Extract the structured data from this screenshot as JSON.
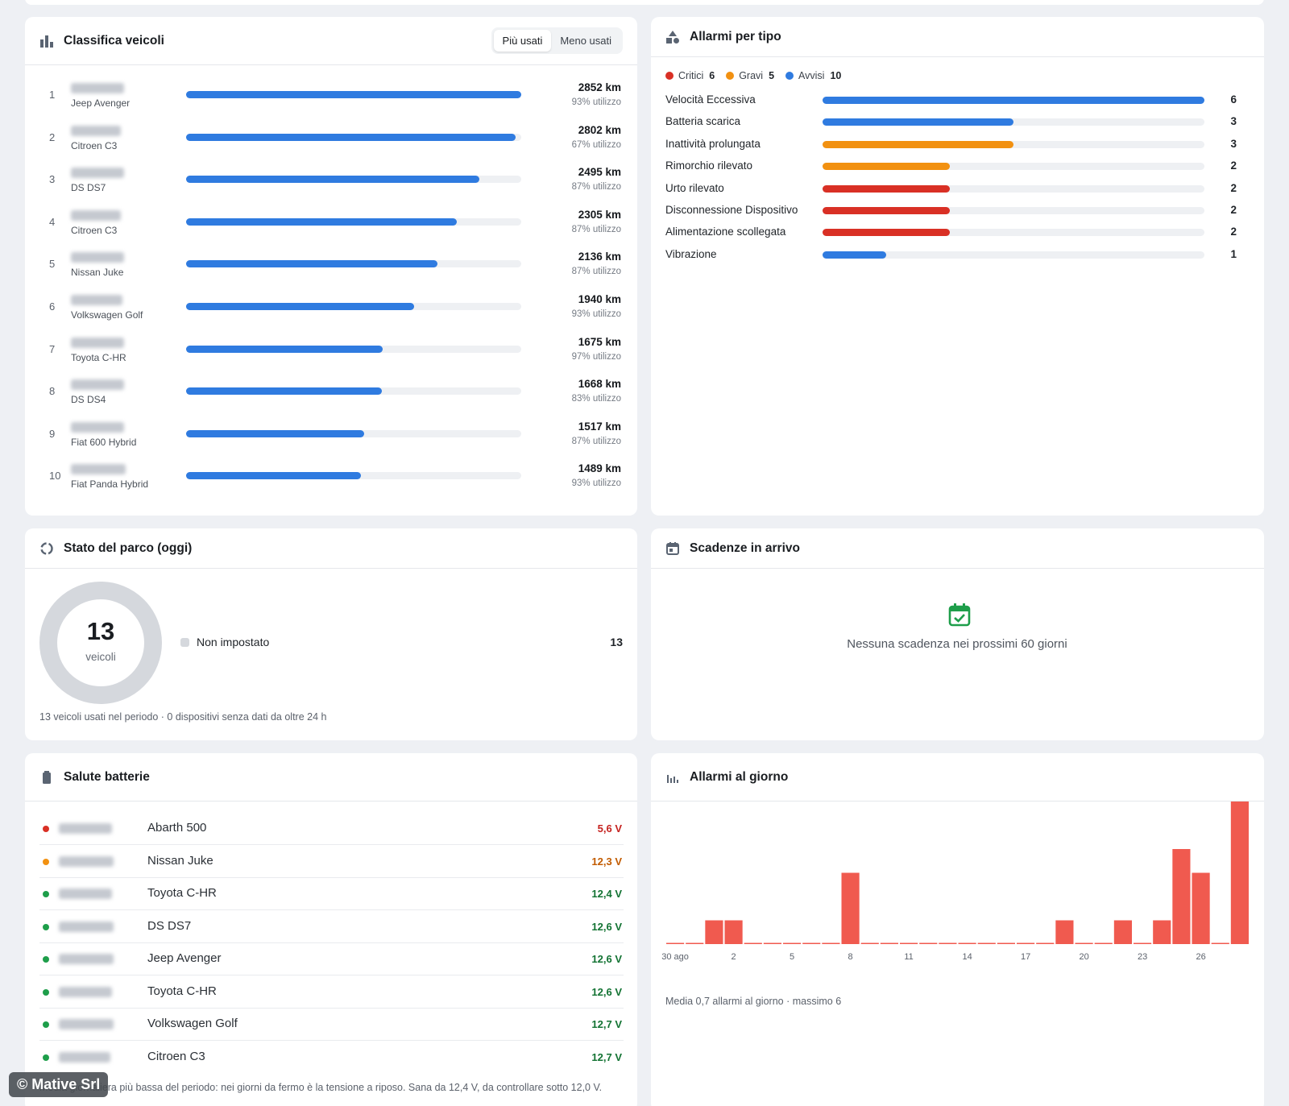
{
  "ranking": {
    "title": "Classifica veicoli",
    "tabs": [
      "Più usati",
      "Meno usati"
    ],
    "active_tab": "Più usati",
    "rows": [
      {
        "rank": "1",
        "model": "Jeep Avenger",
        "km": "2852 km",
        "km_value": 2852,
        "usage": "93% utilizzo"
      },
      {
        "rank": "2",
        "model": "Citroen C3",
        "km": "2802 km",
        "km_value": 2802,
        "usage": "67% utilizzo"
      },
      {
        "rank": "3",
        "model": "DS DS7",
        "km": "2495 km",
        "km_value": 2495,
        "usage": "87% utilizzo"
      },
      {
        "rank": "4",
        "model": "Citroen C3",
        "km": "2305 km",
        "km_value": 2305,
        "usage": "87% utilizzo"
      },
      {
        "rank": "5",
        "model": "Nissan Juke",
        "km": "2136 km",
        "km_value": 2136,
        "usage": "87% utilizzo"
      },
      {
        "rank": "6",
        "model": "Volkswagen Golf",
        "km": "1940 km",
        "km_value": 1940,
        "usage": "93% utilizzo"
      },
      {
        "rank": "7",
        "model": "Toyota C-HR",
        "km": "1675 km",
        "km_value": 1675,
        "usage": "97% utilizzo"
      },
      {
        "rank": "8",
        "model": "DS DS4",
        "km": "1668 km",
        "km_value": 1668,
        "usage": "83% utilizzo"
      },
      {
        "rank": "9",
        "model": "Fiat 600 Hybrid",
        "km": "1517 km",
        "km_value": 1517,
        "usage": "87% utilizzo"
      },
      {
        "rank": "10",
        "model": "Fiat Panda Hybrid",
        "km": "1489 km",
        "km_value": 1489,
        "usage": "93% utilizzo"
      }
    ]
  },
  "alarms_by_type": {
    "title": "Allarmi per tipo",
    "legend": [
      {
        "label": "Critici",
        "count": "6",
        "color": "#d93025"
      },
      {
        "label": "Gravi",
        "count": "5",
        "color": "#f29111"
      },
      {
        "label": "Avvisi",
        "count": "10",
        "color": "#2f7be0"
      }
    ],
    "rows": [
      {
        "label": "Velocità Eccessiva",
        "count": "6",
        "value": 6,
        "color": "#2f7be0"
      },
      {
        "label": "Batteria scarica",
        "count": "3",
        "value": 3,
        "color": "#2f7be0"
      },
      {
        "label": "Inattività prolungata",
        "count": "3",
        "value": 3,
        "color": "#f29111"
      },
      {
        "label": "Rimorchio rilevato",
        "count": "2",
        "value": 2,
        "color": "#f29111"
      },
      {
        "label": "Urto rilevato",
        "count": "2",
        "value": 2,
        "color": "#d93025"
      },
      {
        "label": "Disconnessione Dispositivo",
        "count": "2",
        "value": 2,
        "color": "#d93025"
      },
      {
        "label": "Alimentazione scollegata",
        "count": "2",
        "value": 2,
        "color": "#d93025"
      },
      {
        "label": "Vibrazione",
        "count": "1",
        "value": 1,
        "color": "#2f7be0"
      }
    ]
  },
  "fleet_status": {
    "title": "Stato del parco (oggi)",
    "total": "13",
    "total_label": "veicoli",
    "item_label": "Non impostato",
    "item_count": "13",
    "footnote": "13 veicoli usati nel periodo · 0 dispositivi senza dati da oltre 24 h"
  },
  "deadlines": {
    "title": "Scadenze in arrivo",
    "empty_text": "Nessuna scadenza nei prossimi 60 giorni"
  },
  "battery": {
    "title": "Salute batterie",
    "rows": [
      {
        "model": "Abarth 500",
        "voltage": "5,6 V",
        "status_color": "#d93025",
        "text_color": "#c5221f"
      },
      {
        "model": "Nissan Juke",
        "voltage": "12,3 V",
        "status_color": "#f29111",
        "text_color": "#c25b00"
      },
      {
        "model": "Toyota C-HR",
        "voltage": "12,4 V",
        "status_color": "#1e9e4a",
        "text_color": "#137333"
      },
      {
        "model": "DS DS7",
        "voltage": "12,6 V",
        "status_color": "#1e9e4a",
        "text_color": "#137333"
      },
      {
        "model": "Jeep Avenger",
        "voltage": "12,6 V",
        "status_color": "#1e9e4a",
        "text_color": "#137333"
      },
      {
        "model": "Toyota C-HR",
        "voltage": "12,6 V",
        "status_color": "#1e9e4a",
        "text_color": "#137333"
      },
      {
        "model": "Volkswagen Golf",
        "voltage": "12,7 V",
        "status_color": "#1e9e4a",
        "text_color": "#137333"
      },
      {
        "model": "Citroen C3",
        "voltage": "12,7 V",
        "status_color": "#1e9e4a",
        "text_color": "#137333"
      }
    ],
    "footnote": "Media giornaliera più bassa del periodo: nei giorni da fermo è la tensione a riposo. Sana da 12,4 V, da controllare sotto 12,0 V."
  },
  "alarms_per_day": {
    "title": "Allarmi al giorno",
    "footnote": "Media 0,7 allarmi al giorno · massimo 6",
    "chart_data": {
      "type": "bar",
      "categories": [
        "30 ago",
        "31",
        "1",
        "2",
        "3",
        "4",
        "5",
        "6",
        "7",
        "8",
        "9",
        "10",
        "11",
        "12",
        "13",
        "14",
        "15",
        "16",
        "17",
        "18",
        "19",
        "20",
        "21",
        "22",
        "23",
        "24",
        "25",
        "26",
        "27",
        "28"
      ],
      "tick_labels": [
        "30 ago",
        "2",
        "5",
        "8",
        "11",
        "14",
        "17",
        "20",
        "23",
        "26"
      ],
      "values": [
        0,
        0,
        1,
        1,
        0,
        0,
        0,
        0,
        0,
        3,
        0,
        0,
        0,
        0,
        0,
        0,
        0,
        0,
        0,
        0,
        1,
        0,
        0,
        1,
        0,
        1,
        4,
        3,
        0,
        6
      ],
      "ylim": [
        0,
        6
      ],
      "color": "#f05a4f"
    }
  },
  "watermark": "© Mative Srl"
}
